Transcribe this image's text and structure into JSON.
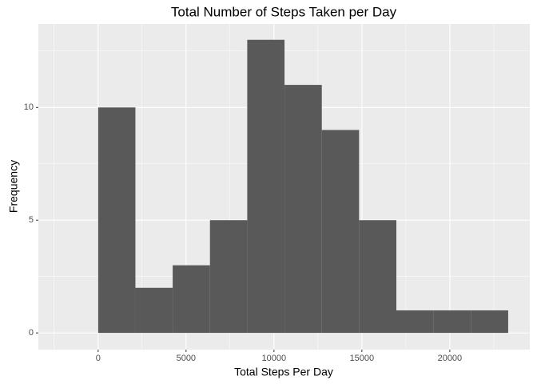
{
  "chart_data": {
    "type": "histogram",
    "title": "Total Number of Steps Taken per Day",
    "x_label": "Total Steps Per Day",
    "y_label": "Frequency",
    "bins": [
      0,
      2120,
      4240,
      6360,
      8480,
      10600,
      12720,
      14840,
      16960,
      19080,
      21200,
      23320
    ],
    "values": [
      10,
      2,
      3,
      5,
      13,
      11,
      9,
      5,
      1,
      1,
      1
    ],
    "color": "#595959",
    "xlim": [
      -3400,
      24550
    ],
    "ylim": [
      -0.74,
      13.7
    ],
    "xticks": [
      0,
      5000,
      10000,
      15000,
      20000
    ],
    "yticks": [
      0,
      5,
      10
    ],
    "x_minor_breaks": [
      -2500,
      2500,
      7500,
      12500,
      17500,
      22500
    ],
    "y_minor_breaks": [
      2.5,
      7.5,
      12.5
    ],
    "grid": true
  }
}
